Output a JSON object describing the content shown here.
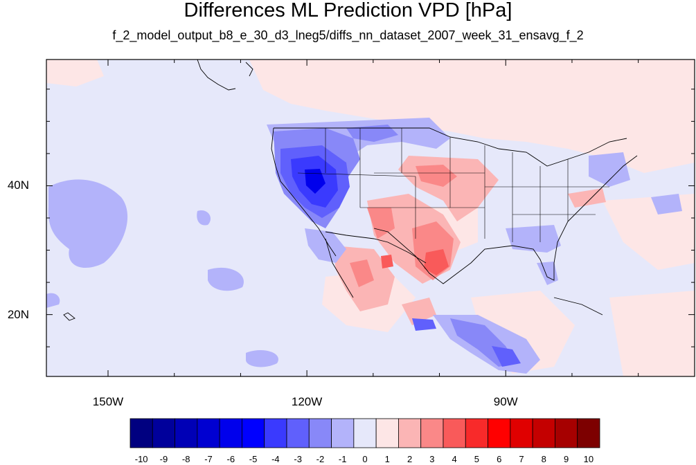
{
  "title": "Differences ML Prediction VPD [hPa]",
  "subtitle": "f_2_model_output_b8_e_30_d3_lneg5/diffs_nn_dataset_2007_week_31_ensavg_f_2",
  "axes": {
    "x_ticks": [
      {
        "value": -150,
        "label": "150W"
      },
      {
        "value": -120,
        "label": "120W"
      },
      {
        "value": -90,
        "label": "90W"
      }
    ],
    "y_ticks": [
      {
        "value": 40,
        "label": "40N"
      },
      {
        "value": 20,
        "label": "20N"
      }
    ],
    "lon_range": [
      -159.3,
      -61.5
    ],
    "lat_range": [
      10.4,
      59.6
    ]
  },
  "colorbar": {
    "labels": [
      "-10",
      "-9",
      "-8",
      "-7",
      "-6",
      "-5",
      "-4",
      "-3",
      "-2",
      "-1",
      "0",
      "1",
      "2",
      "3",
      "4",
      "5",
      "6",
      "7",
      "8",
      "9",
      "10"
    ],
    "colors": [
      "#000080",
      "#00009b",
      "#0000b6",
      "#0000d1",
      "#0000ec",
      "#0000ff",
      "#3a3afe",
      "#6060fc",
      "#8888f8",
      "#b3b3fa",
      "#e6e8fa",
      "#fde6e6",
      "#fbb5b5",
      "#fa8888",
      "#f95a5a",
      "#f82a2a",
      "#ff0000",
      "#e00000",
      "#c40000",
      "#a60000",
      "#7d0000"
    ],
    "position": "bottom"
  }
}
